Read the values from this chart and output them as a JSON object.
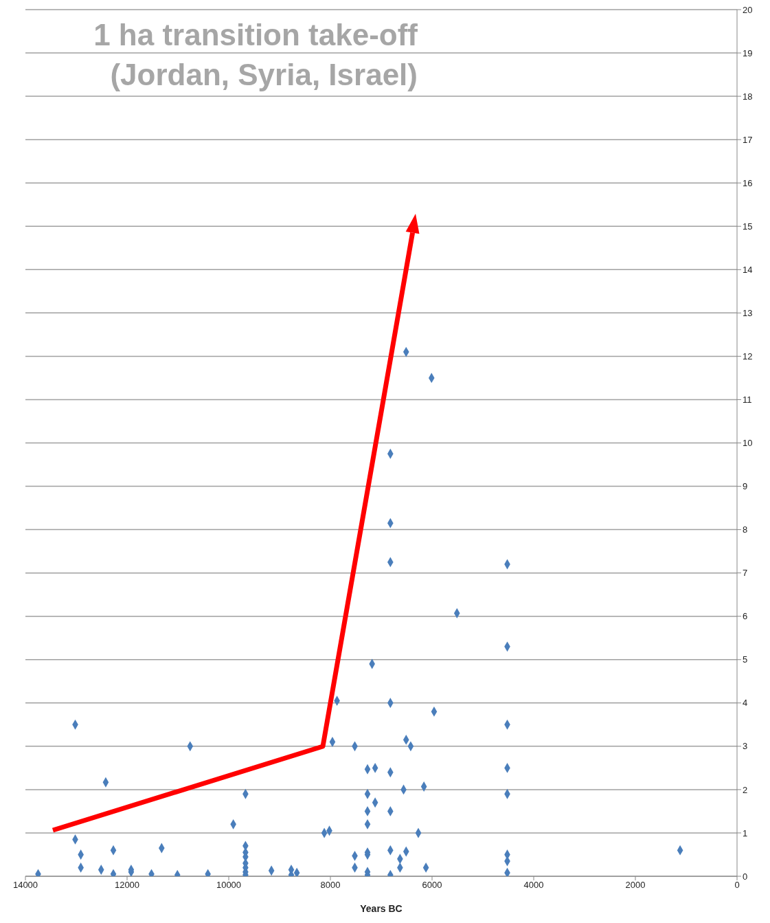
{
  "chart_data": {
    "type": "scatter",
    "title": "1 ha transition take-off\n(Jordan, Syria, Israel)",
    "xlabel": "Years BC",
    "xlim": [
      14000,
      0
    ],
    "xticks": [
      14000,
      12000,
      10000,
      8000,
      6000,
      4000,
      2000,
      0
    ],
    "ylim": [
      0,
      20
    ],
    "yticks": [
      0,
      1,
      2,
      3,
      4,
      5,
      6,
      7,
      8,
      9,
      10,
      11,
      12,
      13,
      14,
      15,
      16,
      17,
      18,
      19,
      20
    ],
    "grid": "y",
    "marker": "diamond",
    "series": [
      {
        "color": "#4a7ebb",
        "x": [
          13750,
          13020,
          13020,
          12910,
          12910,
          12510,
          12420,
          12270,
          12270,
          11920,
          11920,
          11520,
          11320,
          11010,
          10760,
          10410,
          9910,
          9670,
          9670,
          9670,
          9670,
          9670,
          9670,
          9670,
          9670,
          9160,
          8770,
          8770,
          8660,
          8120,
          8020,
          7870,
          7960,
          7520,
          7520,
          7520,
          7270,
          7120,
          7270,
          7120,
          7270,
          7270,
          7270,
          7270,
          7270,
          7270,
          7180,
          6820,
          6820,
          6820,
          6820,
          6820,
          6820,
          6820,
          6820,
          6630,
          6630,
          6510,
          6510,
          6420,
          6560,
          6510,
          6160,
          6270,
          6120,
          6010,
          5960,
          5510,
          4520,
          4520,
          4520,
          4520,
          4520,
          4520,
          4520,
          4520,
          1120
        ],
        "values": [
          0.05,
          3.5,
          0.85,
          0.5,
          0.2,
          0.15,
          2.17,
          0.6,
          0.05,
          0.15,
          0.1,
          0.05,
          0.65,
          0.03,
          3.0,
          0.05,
          1.2,
          1.9,
          0.7,
          0.55,
          0.45,
          0.3,
          0.2,
          0.1,
          0.03,
          0.13,
          0.15,
          0.03,
          0.08,
          1.0,
          1.05,
          4.05,
          3.1,
          3.0,
          0.47,
          0.2,
          2.47,
          2.5,
          1.9,
          1.7,
          1.5,
          1.2,
          0.55,
          0.5,
          0.1,
          0.03,
          4.9,
          9.75,
          8.15,
          7.25,
          4.0,
          2.4,
          1.5,
          0.6,
          0.03,
          0.2,
          0.4,
          12.1,
          3.15,
          3.0,
          2.0,
          0.57,
          2.07,
          1.0,
          0.2,
          11.5,
          3.8,
          6.07,
          7.2,
          5.3,
          3.5,
          2.5,
          1.9,
          0.5,
          0.35,
          0.08,
          0.6
        ]
      }
    ]
  }
}
